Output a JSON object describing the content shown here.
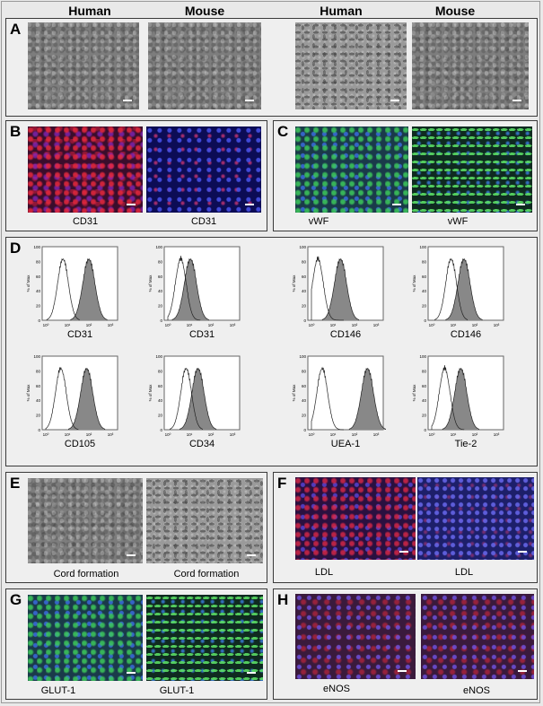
{
  "headers": [
    "Human",
    "Mouse",
    "Human",
    "Mouse"
  ],
  "panels": {
    "A": {
      "label": "A"
    },
    "B": {
      "label": "B",
      "captions": [
        "CD31",
        "CD31"
      ]
    },
    "C": {
      "label": "C",
      "captions": [
        "vWF",
        "vWF"
      ]
    },
    "D": {
      "label": "D"
    },
    "E": {
      "label": "E",
      "captions": [
        "Cord formation",
        "Cord formation"
      ]
    },
    "F": {
      "label": "F",
      "captions": [
        "LDL",
        "LDL"
      ]
    },
    "G": {
      "label": "G",
      "captions": [
        "GLUT-1",
        "GLUT-1"
      ]
    },
    "H": {
      "label": "H",
      "captions": [
        "eNOS",
        "eNOS"
      ]
    }
  },
  "histograms": {
    "ylabel": "% of Max",
    "yticks": [
      "100",
      "80",
      "60",
      "40",
      "20",
      "0"
    ],
    "xticks": [
      "10⁰",
      "10¹",
      "10²",
      "10³"
    ],
    "items": [
      {
        "caption": "CD31",
        "control_peak": 0.8,
        "stained_peak": 2.0
      },
      {
        "caption": "CD31",
        "control_peak": 0.6,
        "stained_peak": 1.05
      },
      {
        "caption": "CD146",
        "control_peak": 0.3,
        "stained_peak": 1.35
      },
      {
        "caption": "CD146",
        "control_peak": 0.9,
        "stained_peak": 1.5
      },
      {
        "caption": "CD105",
        "control_peak": 0.7,
        "stained_peak": 1.9
      },
      {
        "caption": "CD34",
        "control_peak": 0.85,
        "stained_peak": 1.4
      },
      {
        "caption": "UEA-1",
        "control_peak": 0.5,
        "stained_peak": 2.6
      },
      {
        "caption": "Tie-2",
        "control_peak": 0.6,
        "stained_peak": 1.35
      }
    ]
  }
}
